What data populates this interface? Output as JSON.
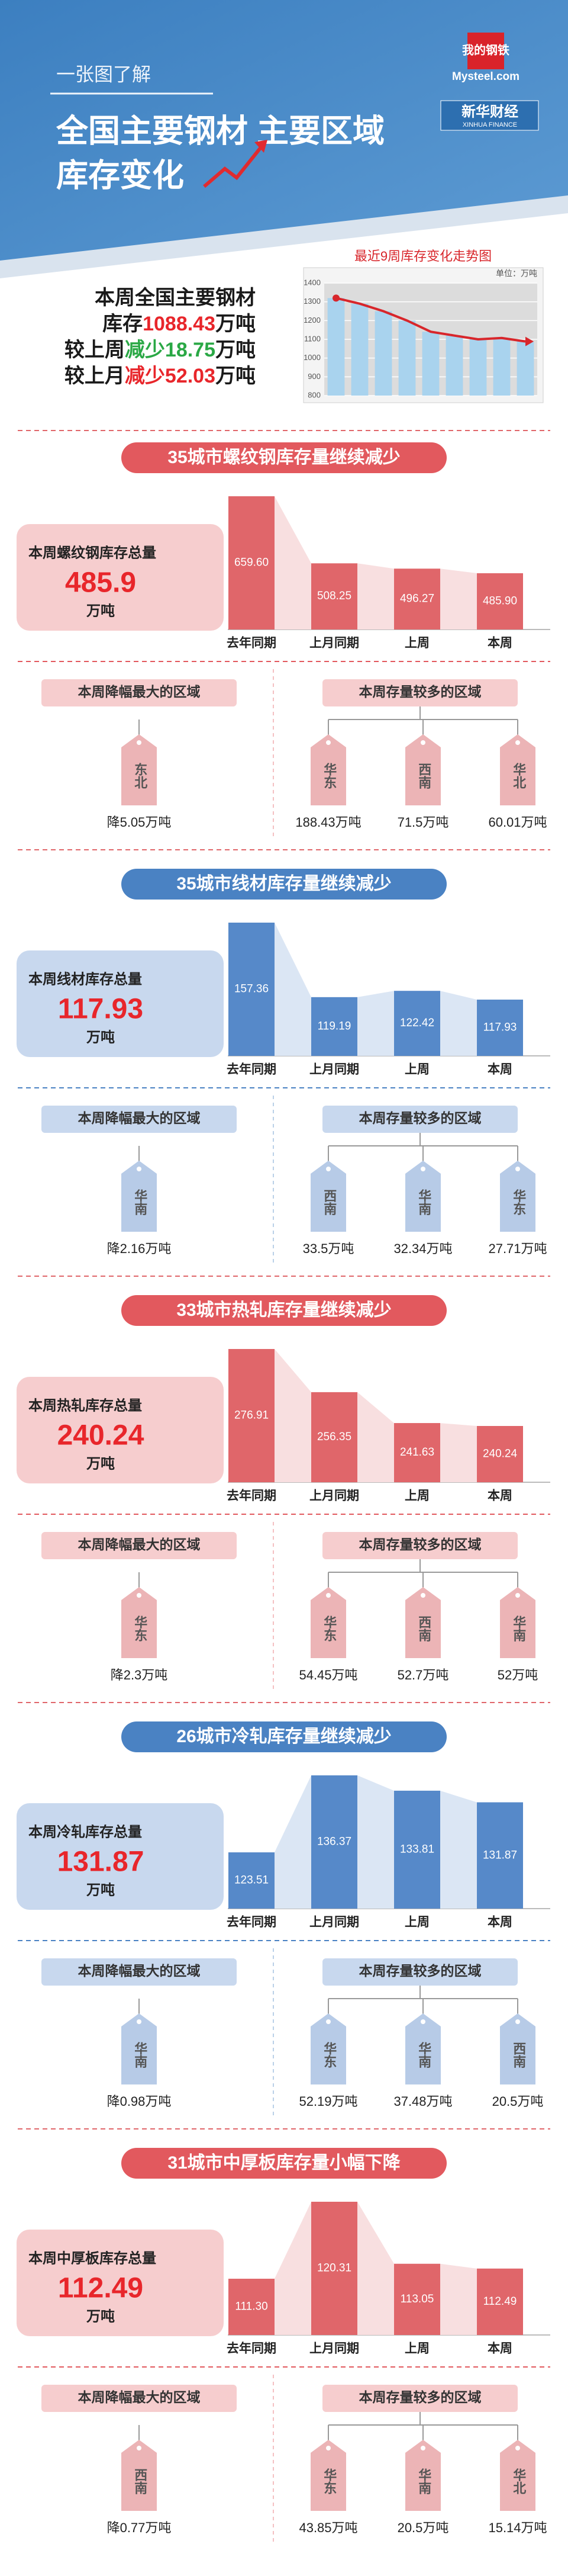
{
  "header": {
    "kicker": "一张图了解",
    "title_line1": "全国主要钢材 主要区域",
    "title_line2": "库存变化",
    "logos": [
      "我的钢铁",
      "Mysteel.com",
      "新华财经",
      "XINHUA FINANCE"
    ]
  },
  "summary": {
    "lines": [
      [
        {
          "text": "本周全国主要钢材",
          "color": "#1a1a1a"
        }
      ],
      [
        {
          "text": "库存",
          "color": "#1a1a1a"
        },
        {
          "text": "1088.43",
          "color": "#e8262b"
        },
        {
          "text": "万吨",
          "color": "#1a1a1a"
        }
      ],
      [
        {
          "text": "较上周",
          "color": "#1a1a1a"
        },
        {
          "text": "减少18.75",
          "color": "#2aa845"
        },
        {
          "text": "万吨",
          "color": "#1a1a1a"
        }
      ],
      [
        {
          "text": "较上月",
          "color": "#1a1a1a"
        },
        {
          "text": "减少52.03",
          "color": "#e8262b"
        },
        {
          "text": "万吨",
          "color": "#1a1a1a"
        }
      ]
    ]
  },
  "chart_data": [
    {
      "type": "combo",
      "title": "最近9周库存变化走势图",
      "unit": "单位：万吨",
      "categories": [
        null,
        null,
        null,
        null,
        null,
        null,
        null,
        null,
        null
      ],
      "values": [
        1320,
        1290,
        1250,
        1200,
        1140.46,
        1120,
        1100,
        1107.18,
        1088.43
      ],
      "bar_color": "#a9d3ee",
      "line_color": "#d8262b",
      "ylim": [
        800,
        1400
      ],
      "yticks": [
        800,
        900,
        1000,
        1100,
        1200,
        1300,
        1400
      ],
      "grid": true
    },
    {
      "type": "bar",
      "title": "35城市螺纹钢库存量继续减少",
      "categories": [
        "去年同期",
        "上月同期",
        "上周",
        "本周"
      ],
      "values": [
        659.6,
        508.25,
        496.27,
        485.9
      ],
      "value_labels": [
        "659.60",
        "508.25",
        "496.27",
        "485.90"
      ],
      "color": "#e0666a"
    },
    {
      "type": "bar",
      "title": "35城市线材库存量继续减少",
      "categories": [
        "去年同期",
        "上月同期",
        "上周",
        "本周"
      ],
      "values": [
        157.36,
        119.19,
        122.42,
        117.93
      ],
      "color": "#5689c9"
    },
    {
      "type": "bar",
      "title": "33城市热轧库存量继续减少",
      "categories": [
        "去年同期",
        "上月同期",
        "上周",
        "本周"
      ],
      "values": [
        276.91,
        256.35,
        241.63,
        240.24
      ],
      "color": "#e0666a"
    },
    {
      "type": "bar",
      "title": "26城市冷轧库存量继续减少",
      "categories": [
        "去年同期",
        "上月同期",
        "上周",
        "本周"
      ],
      "values": [
        123.51,
        136.37,
        133.81,
        131.87
      ],
      "color": "#5689c9"
    },
    {
      "type": "bar",
      "title": "31城市中厚板库存量小幅下降",
      "categories": [
        "去年同期",
        "上月同期",
        "上周",
        "本周"
      ],
      "values": [
        111.3,
        120.31,
        113.05,
        112.49
      ],
      "value_labels": [
        "111.30",
        "120.31",
        "113.05",
        "112.49"
      ],
      "color": "#e0666a"
    }
  ],
  "sections": [
    {
      "theme": "red",
      "panel_label": "本周螺纹钢库存总量",
      "panel_value": "485.9",
      "panel_unit": "万吨",
      "drop_label": "本周降幅最大的区域",
      "drop_region": "东北",
      "drop_value": "降5.05万吨",
      "top_label": "本周存量较多的区域",
      "top": [
        {
          "region": "华东",
          "value": "188.43万吨"
        },
        {
          "region": "西南",
          "value": "71.5万吨"
        },
        {
          "region": "华北",
          "value": "60.01万吨"
        }
      ]
    },
    {
      "theme": "blue",
      "panel_label": "本周线材库存总量",
      "panel_value": "117.93",
      "panel_unit": "万吨",
      "drop_label": "本周降幅最大的区域",
      "drop_region": "华南",
      "drop_value": "降2.16万吨",
      "top_label": "本周存量较多的区域",
      "top": [
        {
          "region": "西南",
          "value": "33.5万吨"
        },
        {
          "region": "华南",
          "value": "32.34万吨"
        },
        {
          "region": "华东",
          "value": "27.71万吨"
        }
      ]
    },
    {
      "theme": "red",
      "panel_label": "本周热轧库存总量",
      "panel_value": "240.24",
      "panel_unit": "万吨",
      "drop_label": "本周降幅最大的区域",
      "drop_region": "华东",
      "drop_value": "降2.3万吨",
      "top_label": "本周存量较多的区域",
      "top": [
        {
          "region": "华东",
          "value": "54.45万吨"
        },
        {
          "region": "西南",
          "value": "52.7万吨"
        },
        {
          "region": "华南",
          "value": "52万吨"
        }
      ]
    },
    {
      "theme": "blue",
      "panel_label": "本周冷轧库存总量",
      "panel_value": "131.87",
      "panel_unit": "万吨",
      "drop_label": "本周降幅最大的区域",
      "drop_region": "华南",
      "drop_value": "降0.98万吨",
      "top_label": "本周存量较多的区域",
      "top": [
        {
          "region": "华东",
          "value": "52.19万吨"
        },
        {
          "region": "华南",
          "value": "37.48万吨"
        },
        {
          "region": "西南",
          "value": "20.5万吨"
        }
      ]
    },
    {
      "theme": "red",
      "panel_label": "本周中厚板库存总量",
      "panel_value": "112.49",
      "panel_unit": "万吨",
      "drop_label": "本周降幅最大的区域",
      "drop_region": "西南",
      "drop_value": "降0.77万吨",
      "top_label": "本周存量较多的区域",
      "top": [
        {
          "region": "华东",
          "value": "43.85万吨"
        },
        {
          "region": "华南",
          "value": "20.5万吨"
        },
        {
          "region": "华北",
          "value": "15.14万吨"
        }
      ]
    }
  ]
}
